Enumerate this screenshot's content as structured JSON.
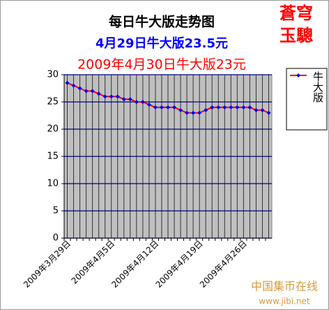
{
  "chart_data": {
    "type": "line",
    "title": "每日牛大版走势图",
    "subtitle": "4月29日牛大版23.5元",
    "subtitle2": "2009年4月30日牛大版23元",
    "logo": [
      "蒼穹",
      "玉驄"
    ],
    "watermark": [
      "中国集币在线",
      "www.jibi.net"
    ],
    "categories": [
      "2009年3月29日",
      null,
      null,
      null,
      null,
      null,
      null,
      "2009年4月5日",
      null,
      null,
      null,
      null,
      null,
      null,
      "2009年4月12日",
      null,
      null,
      null,
      null,
      null,
      null,
      "2009年4月19日",
      null,
      null,
      null,
      null,
      null,
      null,
      "2009年4月26日",
      null,
      null,
      null,
      null
    ],
    "series": [
      {
        "name": "牛大版",
        "color": "#ff0000",
        "marker_color": "#0000ff",
        "values": [
          28.5,
          28,
          27.5,
          27,
          27,
          26.5,
          26,
          26,
          26,
          25.5,
          25.5,
          25,
          25,
          24.5,
          24,
          24,
          24,
          24,
          23.5,
          23,
          23,
          23,
          23.5,
          24,
          24,
          24,
          24,
          24,
          24,
          24,
          23.5,
          23.5,
          23
        ]
      }
    ],
    "ylim": [
      0,
      30
    ],
    "yticks": [
      0,
      5,
      10,
      15,
      20,
      25,
      30
    ],
    "grid": true
  }
}
